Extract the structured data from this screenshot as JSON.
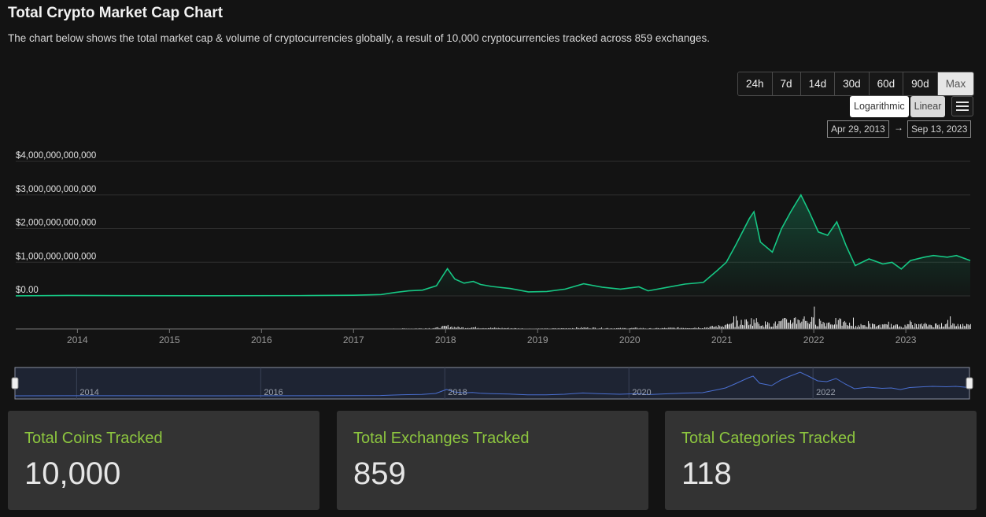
{
  "header": {
    "title": "Total Crypto Market Cap Chart",
    "subtitle": "The chart below shows the total market cap & volume of cryptocurrencies globally, a result of 10,000 cryptocurrencies tracked across 859 exchanges."
  },
  "controls": {
    "ranges": [
      "24h",
      "7d",
      "14d",
      "30d",
      "60d",
      "90d",
      "Max"
    ],
    "active_range": "Max",
    "scales": [
      "Logarithmic",
      "Linear"
    ],
    "active_scale": "Linear",
    "menu_icon": "hamburger-menu-icon",
    "date_from": "Apr 29, 2013",
    "date_arrow": "→",
    "date_to": "Sep 13, 2023"
  },
  "chart_data": {
    "type": "area",
    "title": "",
    "xlabel": "",
    "ylabel": "",
    "y_ticks": [
      "$0.00",
      "$1,000,000,000,000",
      "$2,000,000,000,000",
      "$3,000,000,000,000",
      "$4,000,000,000,000"
    ],
    "ylim": [
      0,
      4000000000000
    ],
    "x_ticks": [
      "2014",
      "2015",
      "2016",
      "2017",
      "2018",
      "2019",
      "2020",
      "2021",
      "2022",
      "2023"
    ],
    "xlim": [
      2013.33,
      2023.7
    ],
    "grid": true,
    "line_color": "#16c784",
    "volume_color": "#ffffff",
    "series": [
      {
        "values": [
          [
            2013.33,
            1500000000.0
          ],
          [
            2013.9,
            13000000000.0
          ],
          [
            2014.5,
            8000000000.0
          ],
          [
            2015.5,
            4000000000.0
          ],
          [
            2016.5,
            10000000000.0
          ],
          [
            2017.0,
            18000000000.0
          ],
          [
            2017.3,
            40000000000.0
          ],
          [
            2017.45,
            100000000000.0
          ],
          [
            2017.6,
            150000000000.0
          ],
          [
            2017.75,
            170000000000.0
          ],
          [
            2017.9,
            300000000000.0
          ],
          [
            2017.97,
            600000000000.0
          ],
          [
            2018.02,
            810000000000.0
          ],
          [
            2018.1,
            500000000000.0
          ],
          [
            2018.2,
            380000000000.0
          ],
          [
            2018.3,
            430000000000.0
          ],
          [
            2018.38,
            340000000000.0
          ],
          [
            2018.5,
            280000000000.0
          ],
          [
            2018.7,
            220000000000.0
          ],
          [
            2018.9,
            120000000000.0
          ],
          [
            2019.1,
            130000000000.0
          ],
          [
            2019.3,
            200000000000.0
          ],
          [
            2019.5,
            360000000000.0
          ],
          [
            2019.7,
            260000000000.0
          ],
          [
            2019.9,
            200000000000.0
          ],
          [
            2020.1,
            270000000000.0
          ],
          [
            2020.2,
            150000000000.0
          ],
          [
            2020.4,
            250000000000.0
          ],
          [
            2020.6,
            350000000000.0
          ],
          [
            2020.8,
            400000000000.0
          ],
          [
            2020.95,
            750000000000.0
          ],
          [
            2021.05,
            1000000000000.0
          ],
          [
            2021.15,
            1500000000000.0
          ],
          [
            2021.3,
            2300000000000.0
          ],
          [
            2021.35,
            2500000000000.0
          ],
          [
            2021.42,
            1600000000000.0
          ],
          [
            2021.55,
            1300000000000.0
          ],
          [
            2021.65,
            2000000000000.0
          ],
          [
            2021.75,
            2500000000000.0
          ],
          [
            2021.86,
            3000000000000.0
          ],
          [
            2021.95,
            2500000000000.0
          ],
          [
            2022.05,
            1900000000000.0
          ],
          [
            2022.15,
            1800000000000.0
          ],
          [
            2022.25,
            2200000000000.0
          ],
          [
            2022.35,
            1500000000000.0
          ],
          [
            2022.45,
            900000000000.0
          ],
          [
            2022.6,
            1100000000000.0
          ],
          [
            2022.75,
            950000000000.0
          ],
          [
            2022.85,
            1000000000000.0
          ],
          [
            2022.95,
            800000000000.0
          ],
          [
            2023.05,
            1050000000000.0
          ],
          [
            2023.2,
            1150000000000.0
          ],
          [
            2023.3,
            1200000000000.0
          ],
          [
            2023.45,
            1150000000000.0
          ],
          [
            2023.55,
            1200000000000.0
          ],
          [
            2023.7,
            1050000000000.0
          ]
        ]
      }
    ]
  },
  "navigator": {
    "labels": [
      "2014",
      "2016",
      "2018",
      "2020",
      "2022"
    ]
  },
  "stats": [
    {
      "label": "Total Coins Tracked",
      "value": "10,000"
    },
    {
      "label": "Total Exchanges Tracked",
      "value": "859"
    },
    {
      "label": "Total Categories Tracked",
      "value": "118"
    }
  ]
}
